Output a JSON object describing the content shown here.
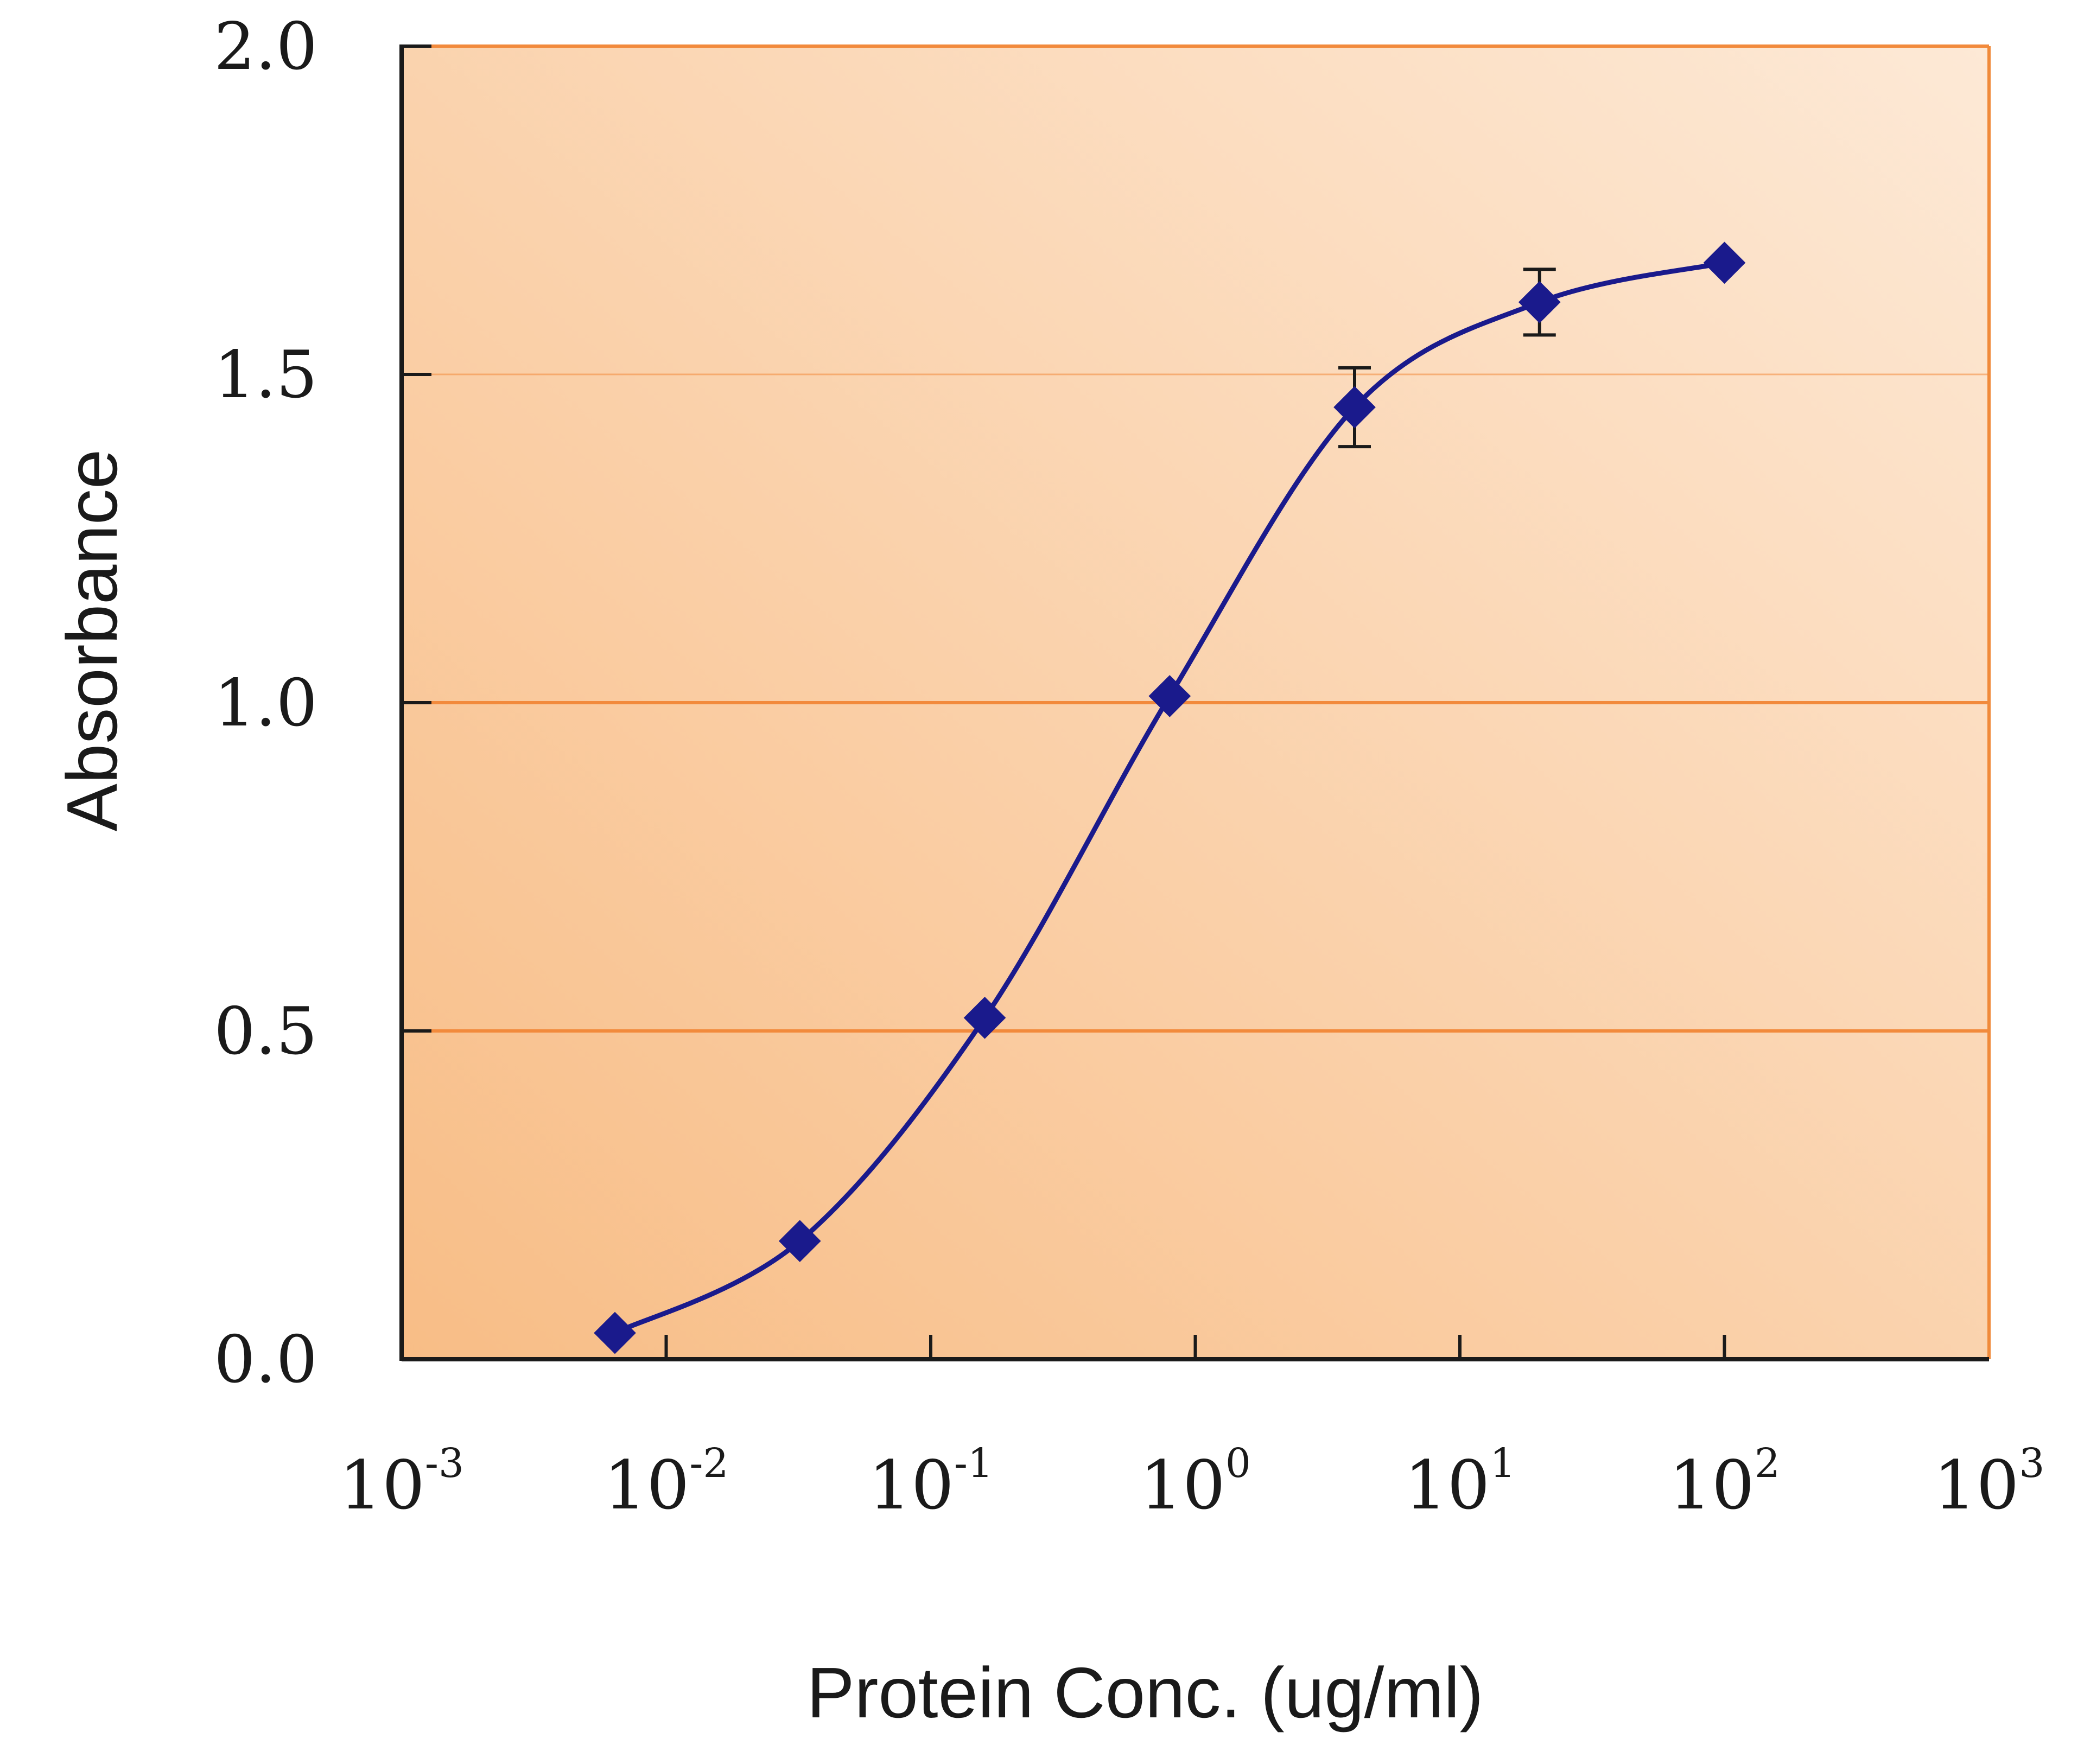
{
  "chart_data": {
    "type": "line",
    "title": "",
    "xlabel": "Protein Conc. (ug/ml)",
    "ylabel": "Absorbance",
    "xscale": "log",
    "xlim": [
      0.001,
      1000
    ],
    "ylim": [
      0,
      2.0
    ],
    "grid": "horizontal",
    "yticks": [
      {
        "value": 0.0,
        "label": "0.0"
      },
      {
        "value": 0.5,
        "label": "0.5"
      },
      {
        "value": 1.0,
        "label": "1.0"
      },
      {
        "value": 1.5,
        "label": "1.5"
      },
      {
        "value": 2.0,
        "label": "2.0"
      }
    ],
    "xticks": [
      {
        "value": 0.001,
        "base": "10",
        "exp": "-3"
      },
      {
        "value": 0.01,
        "base": "10",
        "exp": "-2"
      },
      {
        "value": 0.1,
        "base": "10",
        "exp": "-1"
      },
      {
        "value": 1,
        "base": "10",
        "exp": "0"
      },
      {
        "value": 10,
        "base": "10",
        "exp": "1"
      },
      {
        "value": 100,
        "base": "10",
        "exp": "2"
      },
      {
        "value": 1000,
        "base": "10",
        "exp": "3"
      }
    ],
    "series": [
      {
        "name": "Absorbance",
        "color": "#1a1a8c",
        "marker": "diamond",
        "points": [
          {
            "x": 0.0064,
            "y": 0.04,
            "err": 0
          },
          {
            "x": 0.032,
            "y": 0.18,
            "err": 0
          },
          {
            "x": 0.16,
            "y": 0.52,
            "err": 0
          },
          {
            "x": 0.8,
            "y": 1.01,
            "err": 0
          },
          {
            "x": 4.0,
            "y": 1.45,
            "err": 0.06
          },
          {
            "x": 20,
            "y": 1.61,
            "err": 0.05
          },
          {
            "x": 100,
            "y": 1.67,
            "err": 0
          }
        ]
      }
    ],
    "colors": {
      "plot_bg_start": "#f8bd86",
      "plot_bg_end": "#fde9d6",
      "gridline": "#f28a3c",
      "frame": "#f08a3a",
      "axis": "#1a1a1a"
    }
  }
}
